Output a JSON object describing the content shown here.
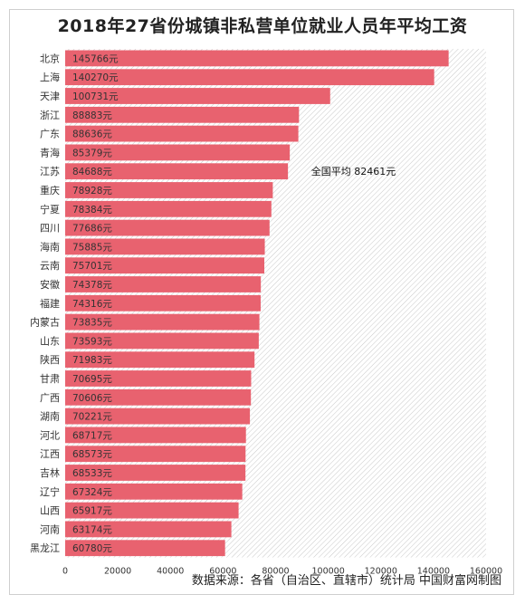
{
  "chart_data": {
    "type": "bar",
    "orientation": "horizontal",
    "title": "2018年27省份城镇非私营单位就业人员年平均工资",
    "categories": [
      "北京",
      "上海",
      "天津",
      "浙江",
      "广东",
      "青海",
      "江苏",
      "重庆",
      "宁夏",
      "四川",
      "海南",
      "云南",
      "安徽",
      "福建",
      "内蒙古",
      "山东",
      "陕西",
      "甘肃",
      "广西",
      "湖南",
      "河北",
      "江西",
      "吉林",
      "辽宁",
      "山西",
      "河南",
      "黑龙江"
    ],
    "values": [
      145766,
      140270,
      100731,
      88883,
      88636,
      85379,
      84688,
      78928,
      78384,
      77686,
      75885,
      75701,
      74378,
      74316,
      73835,
      73593,
      71983,
      70695,
      70606,
      70221,
      68717,
      68573,
      68533,
      67324,
      65917,
      63174,
      60780
    ],
    "value_labels": [
      "145766元",
      "140270元",
      "100731元",
      "88883元",
      "88636元",
      "85379元",
      "84688元",
      "78928元",
      "78384元",
      "77686元",
      "75885元",
      "75701元",
      "74378元",
      "74316元",
      "73835元",
      "73593元",
      "71983元",
      "70695元",
      "70606元",
      "70221元",
      "68717元",
      "68573元",
      "68533元",
      "67324元",
      "65917元",
      "63174元",
      "60780元"
    ],
    "xlim": [
      0,
      160000
    ],
    "xticks": [
      0,
      20000,
      40000,
      60000,
      80000,
      100000,
      120000,
      140000,
      160000
    ],
    "xtick_labels": [
      "0",
      "20000",
      "40000",
      "60000",
      "80000",
      "100000",
      "120000",
      "140000",
      "160000"
    ],
    "bar_color": "#e8626f",
    "annotation": "全国平均 82461元",
    "source": "数据来源：各省（自治区、直辖市）统计局 中国财富网制图"
  }
}
